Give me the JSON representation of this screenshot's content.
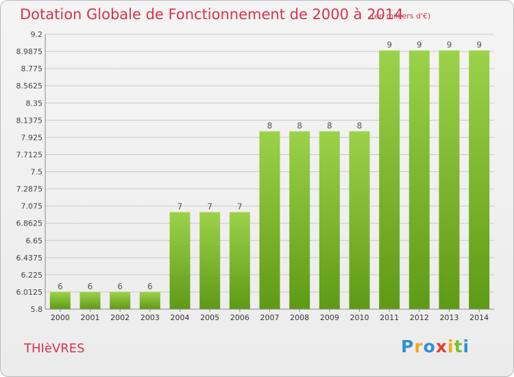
{
  "header": {
    "title": "Dotation Globale de Fonctionnement de 2000 à 2014",
    "subtitle": "(en milliers d'€)"
  },
  "footer": {
    "commune": "THIèVRES",
    "logo_text": "Proxiti"
  },
  "colors": {
    "bar_light": "#9cd24a",
    "bar_dark": "#5f9a16",
    "title": "#d6324b",
    "grid": "#c8c8c8"
  },
  "chart_data": {
    "type": "bar",
    "title": "Dotation Globale de Fonctionnement de 2000 à 2014",
    "subtitle": "(en milliers d'€)",
    "categories": [
      "2000",
      "2001",
      "2002",
      "2003",
      "2004",
      "2005",
      "2006",
      "2007",
      "2008",
      "2009",
      "2010",
      "2011",
      "2012",
      "2013",
      "2014"
    ],
    "values": [
      6.0125,
      6.0125,
      6.0125,
      6.0125,
      7,
      7,
      7,
      8,
      8,
      8,
      8,
      9,
      9,
      9,
      9
    ],
    "data_labels": [
      "6",
      "6",
      "6",
      "6",
      "7",
      "7",
      "7",
      "8",
      "8",
      "8",
      "8",
      "9",
      "9",
      "9",
      "9"
    ],
    "ylim": [
      5.8,
      9.2
    ],
    "yticks": [
      "5.8",
      "6.0125",
      "6.225",
      "6.4375",
      "6.65",
      "6.8625",
      "7.075",
      "7.2875",
      "7.5",
      "7.7125",
      "7.925",
      "8.1375",
      "8.35",
      "8.5625",
      "8.775",
      "8.9875",
      "9.2"
    ],
    "grid": true,
    "xlabel": "",
    "ylabel": ""
  }
}
